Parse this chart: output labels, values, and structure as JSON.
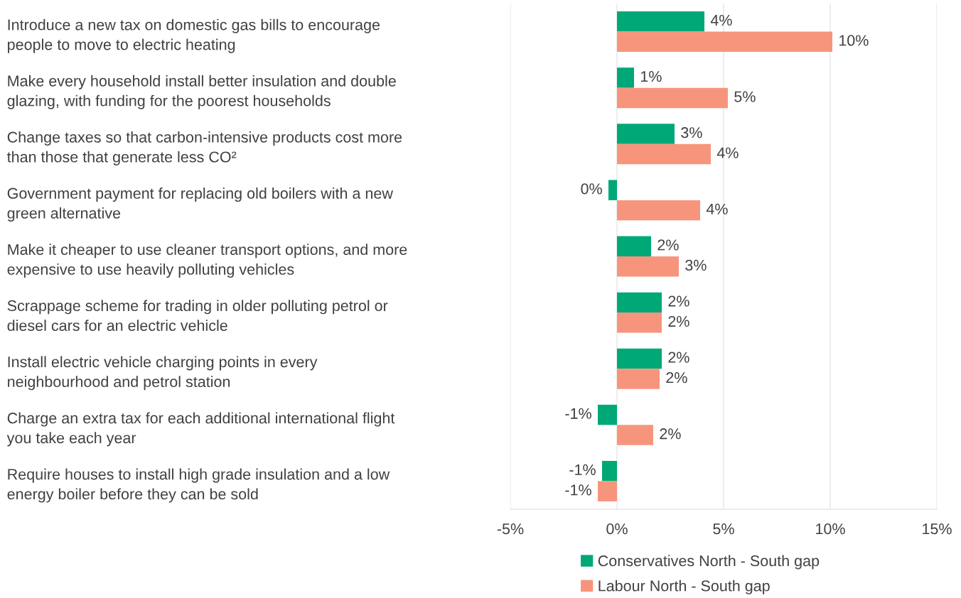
{
  "chart_data": {
    "type": "bar",
    "orientation": "horizontal",
    "categories": [
      "Introduce a new tax on domestic gas bills to encourage\npeople to move to electric heating",
      "Make every household install better insulation and double\nglazing, with funding for the poorest households",
      "Change taxes so that carbon-intensive products cost more\nthan those that generate less CO²",
      "Government payment for replacing old boilers with a new\ngreen alternative",
      "Make it cheaper to use cleaner transport options, and more\nexpensive to use heavily polluting vehicles",
      "Scrappage scheme for trading in older polluting petrol or\ndiesel cars for an electric vehicle",
      "Install electric vehicle charging points in every\nneighbourhood and petrol station",
      "Charge an extra tax for each additional international flight\nyou take each year",
      "Require houses to install high grade insulation and a low\nenergy boiler before they can be sold"
    ],
    "series": [
      {
        "name": "Conservatives North - South gap",
        "color": "#00a878",
        "values": [
          4.1,
          0.8,
          2.7,
          -0.4,
          1.6,
          2.1,
          2.1,
          -0.9,
          -0.7
        ],
        "value_labels": [
          "4%",
          "1%",
          "3%",
          "0%",
          "2%",
          "2%",
          "2%",
          "-1%",
          "-1%"
        ]
      },
      {
        "name": "Labour North - South gap",
        "color": "#f7957c",
        "values": [
          10.1,
          5.2,
          4.4,
          3.9,
          2.9,
          2.1,
          2.0,
          1.7,
          -0.9
        ],
        "value_labels": [
          "10%",
          "5%",
          "4%",
          "4%",
          "3%",
          "2%",
          "2%",
          "2%",
          "-1%"
        ]
      }
    ],
    "xlim": [
      -5,
      15
    ],
    "xticks": [
      {
        "value": -5,
        "label": "-5%"
      },
      {
        "value": 0,
        "label": "0%"
      },
      {
        "value": 5,
        "label": "5%"
      },
      {
        "value": 10,
        "label": "10%"
      },
      {
        "value": 15,
        "label": "15%"
      }
    ],
    "grid": "x",
    "legend": "bottom"
  }
}
